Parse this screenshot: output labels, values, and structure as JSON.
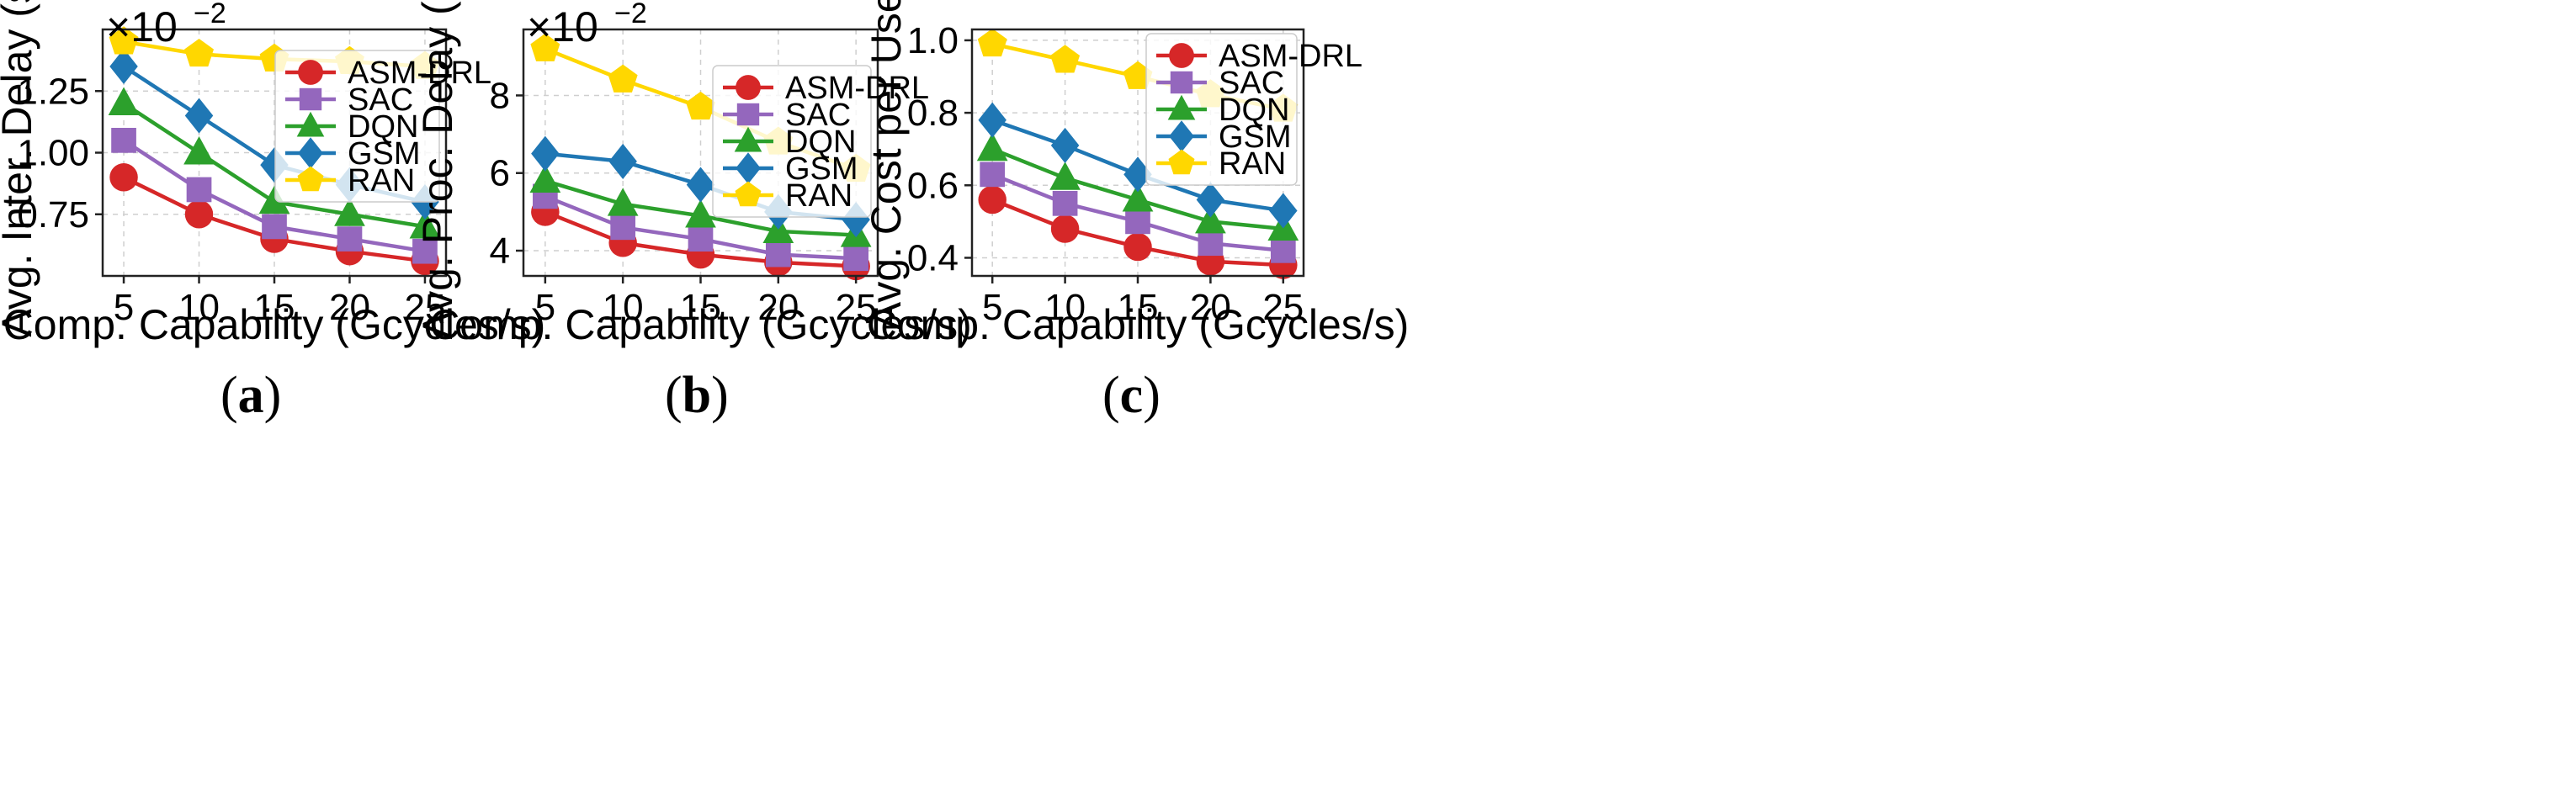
{
  "colors": {
    "ASM-DRL": "#d62728",
    "SAC": "#9467bd",
    "DQN": "#2ca02c",
    "GSM": "#1f77b4",
    "RAN": "#ffd700"
  },
  "markers": {
    "ASM-DRL": "circle",
    "SAC": "square",
    "DQN": "triangle",
    "GSM": "diamond",
    "RAN": "pentagon"
  },
  "chart_data": [
    {
      "type": "line",
      "id": "a",
      "caption_letter": "a",
      "xlabel": "Comp. Capability (Gcycles/s)",
      "ylabel": "Avg. Inter. Delay (s)",
      "multiplier_base": "×10",
      "multiplier_exp": "−2",
      "x": [
        5,
        10,
        15,
        20,
        25
      ],
      "xticks": [
        "5",
        "10",
        "15",
        "20",
        "25"
      ],
      "xlim": [
        3.6,
        26.4
      ],
      "ylim": [
        0.5,
        1.5
      ],
      "yticks": [
        0.75,
        1.0,
        1.25
      ],
      "ytick_labels": [
        "0.75",
        "1.00",
        "1.25"
      ],
      "legend_position": "top-right",
      "series": [
        {
          "name": "ASM-DRL",
          "values": [
            0.9,
            0.75,
            0.65,
            0.6,
            0.56
          ]
        },
        {
          "name": "SAC",
          "values": [
            1.05,
            0.85,
            0.7,
            0.65,
            0.6
          ]
        },
        {
          "name": "DQN",
          "values": [
            1.2,
            1.0,
            0.8,
            0.75,
            0.7
          ]
        },
        {
          "name": "GSM",
          "values": [
            1.35,
            1.15,
            0.95,
            0.87,
            0.8
          ]
        },
        {
          "name": "RAN",
          "values": [
            1.45,
            1.4,
            1.38,
            1.37,
            1.35
          ]
        }
      ]
    },
    {
      "type": "line",
      "id": "b",
      "caption_letter": "b",
      "xlabel": "Comp. Capability (Gcycles/s)",
      "ylabel": "Avg. Proc. Delay (s)",
      "multiplier_base": "×10",
      "multiplier_exp": "−2",
      "x": [
        5,
        10,
        15,
        20,
        25
      ],
      "xticks": [
        "5",
        "10",
        "15",
        "20",
        "25"
      ],
      "xlim": [
        3.6,
        26.4
      ],
      "ylim": [
        3.35,
        9.7
      ],
      "yticks": [
        4,
        6,
        8
      ],
      "ytick_labels": [
        "4",
        "6",
        "8"
      ],
      "legend_position": "top-right",
      "series": [
        {
          "name": "ASM-DRL",
          "values": [
            5.0,
            4.2,
            3.9,
            3.7,
            3.6
          ]
        },
        {
          "name": "SAC",
          "values": [
            5.4,
            4.6,
            4.3,
            3.9,
            3.8
          ]
        },
        {
          "name": "DQN",
          "values": [
            5.8,
            5.2,
            4.9,
            4.5,
            4.4
          ]
        },
        {
          "name": "GSM",
          "values": [
            6.5,
            6.3,
            5.7,
            5.0,
            4.8
          ]
        },
        {
          "name": "RAN",
          "values": [
            9.2,
            8.4,
            7.7,
            6.8,
            6.1
          ]
        }
      ]
    },
    {
      "type": "line",
      "id": "c",
      "caption_letter": "c",
      "xlabel": "Comp. Capability (Gcycles/s)",
      "ylabel": "Avg. Cost per User",
      "x": [
        5,
        10,
        15,
        20,
        25
      ],
      "xticks": [
        "5",
        "10",
        "15",
        "20",
        "25"
      ],
      "xlim": [
        3.6,
        26.4
      ],
      "ylim": [
        0.35,
        1.03
      ],
      "yticks": [
        0.4,
        0.6,
        0.8,
        1.0
      ],
      "ytick_labels": [
        "0.4",
        "0.6",
        "0.8",
        "1.0"
      ],
      "legend_position": "top-right",
      "series": [
        {
          "name": "ASM-DRL",
          "values": [
            0.56,
            0.48,
            0.43,
            0.39,
            0.38
          ]
        },
        {
          "name": "SAC",
          "values": [
            0.63,
            0.55,
            0.5,
            0.44,
            0.42
          ]
        },
        {
          "name": "DQN",
          "values": [
            0.7,
            0.62,
            0.56,
            0.5,
            0.48
          ]
        },
        {
          "name": "GSM",
          "values": [
            0.78,
            0.71,
            0.63,
            0.56,
            0.53
          ]
        },
        {
          "name": "RAN",
          "values": [
            0.99,
            0.945,
            0.9,
            0.85,
            0.81
          ]
        }
      ]
    }
  ]
}
